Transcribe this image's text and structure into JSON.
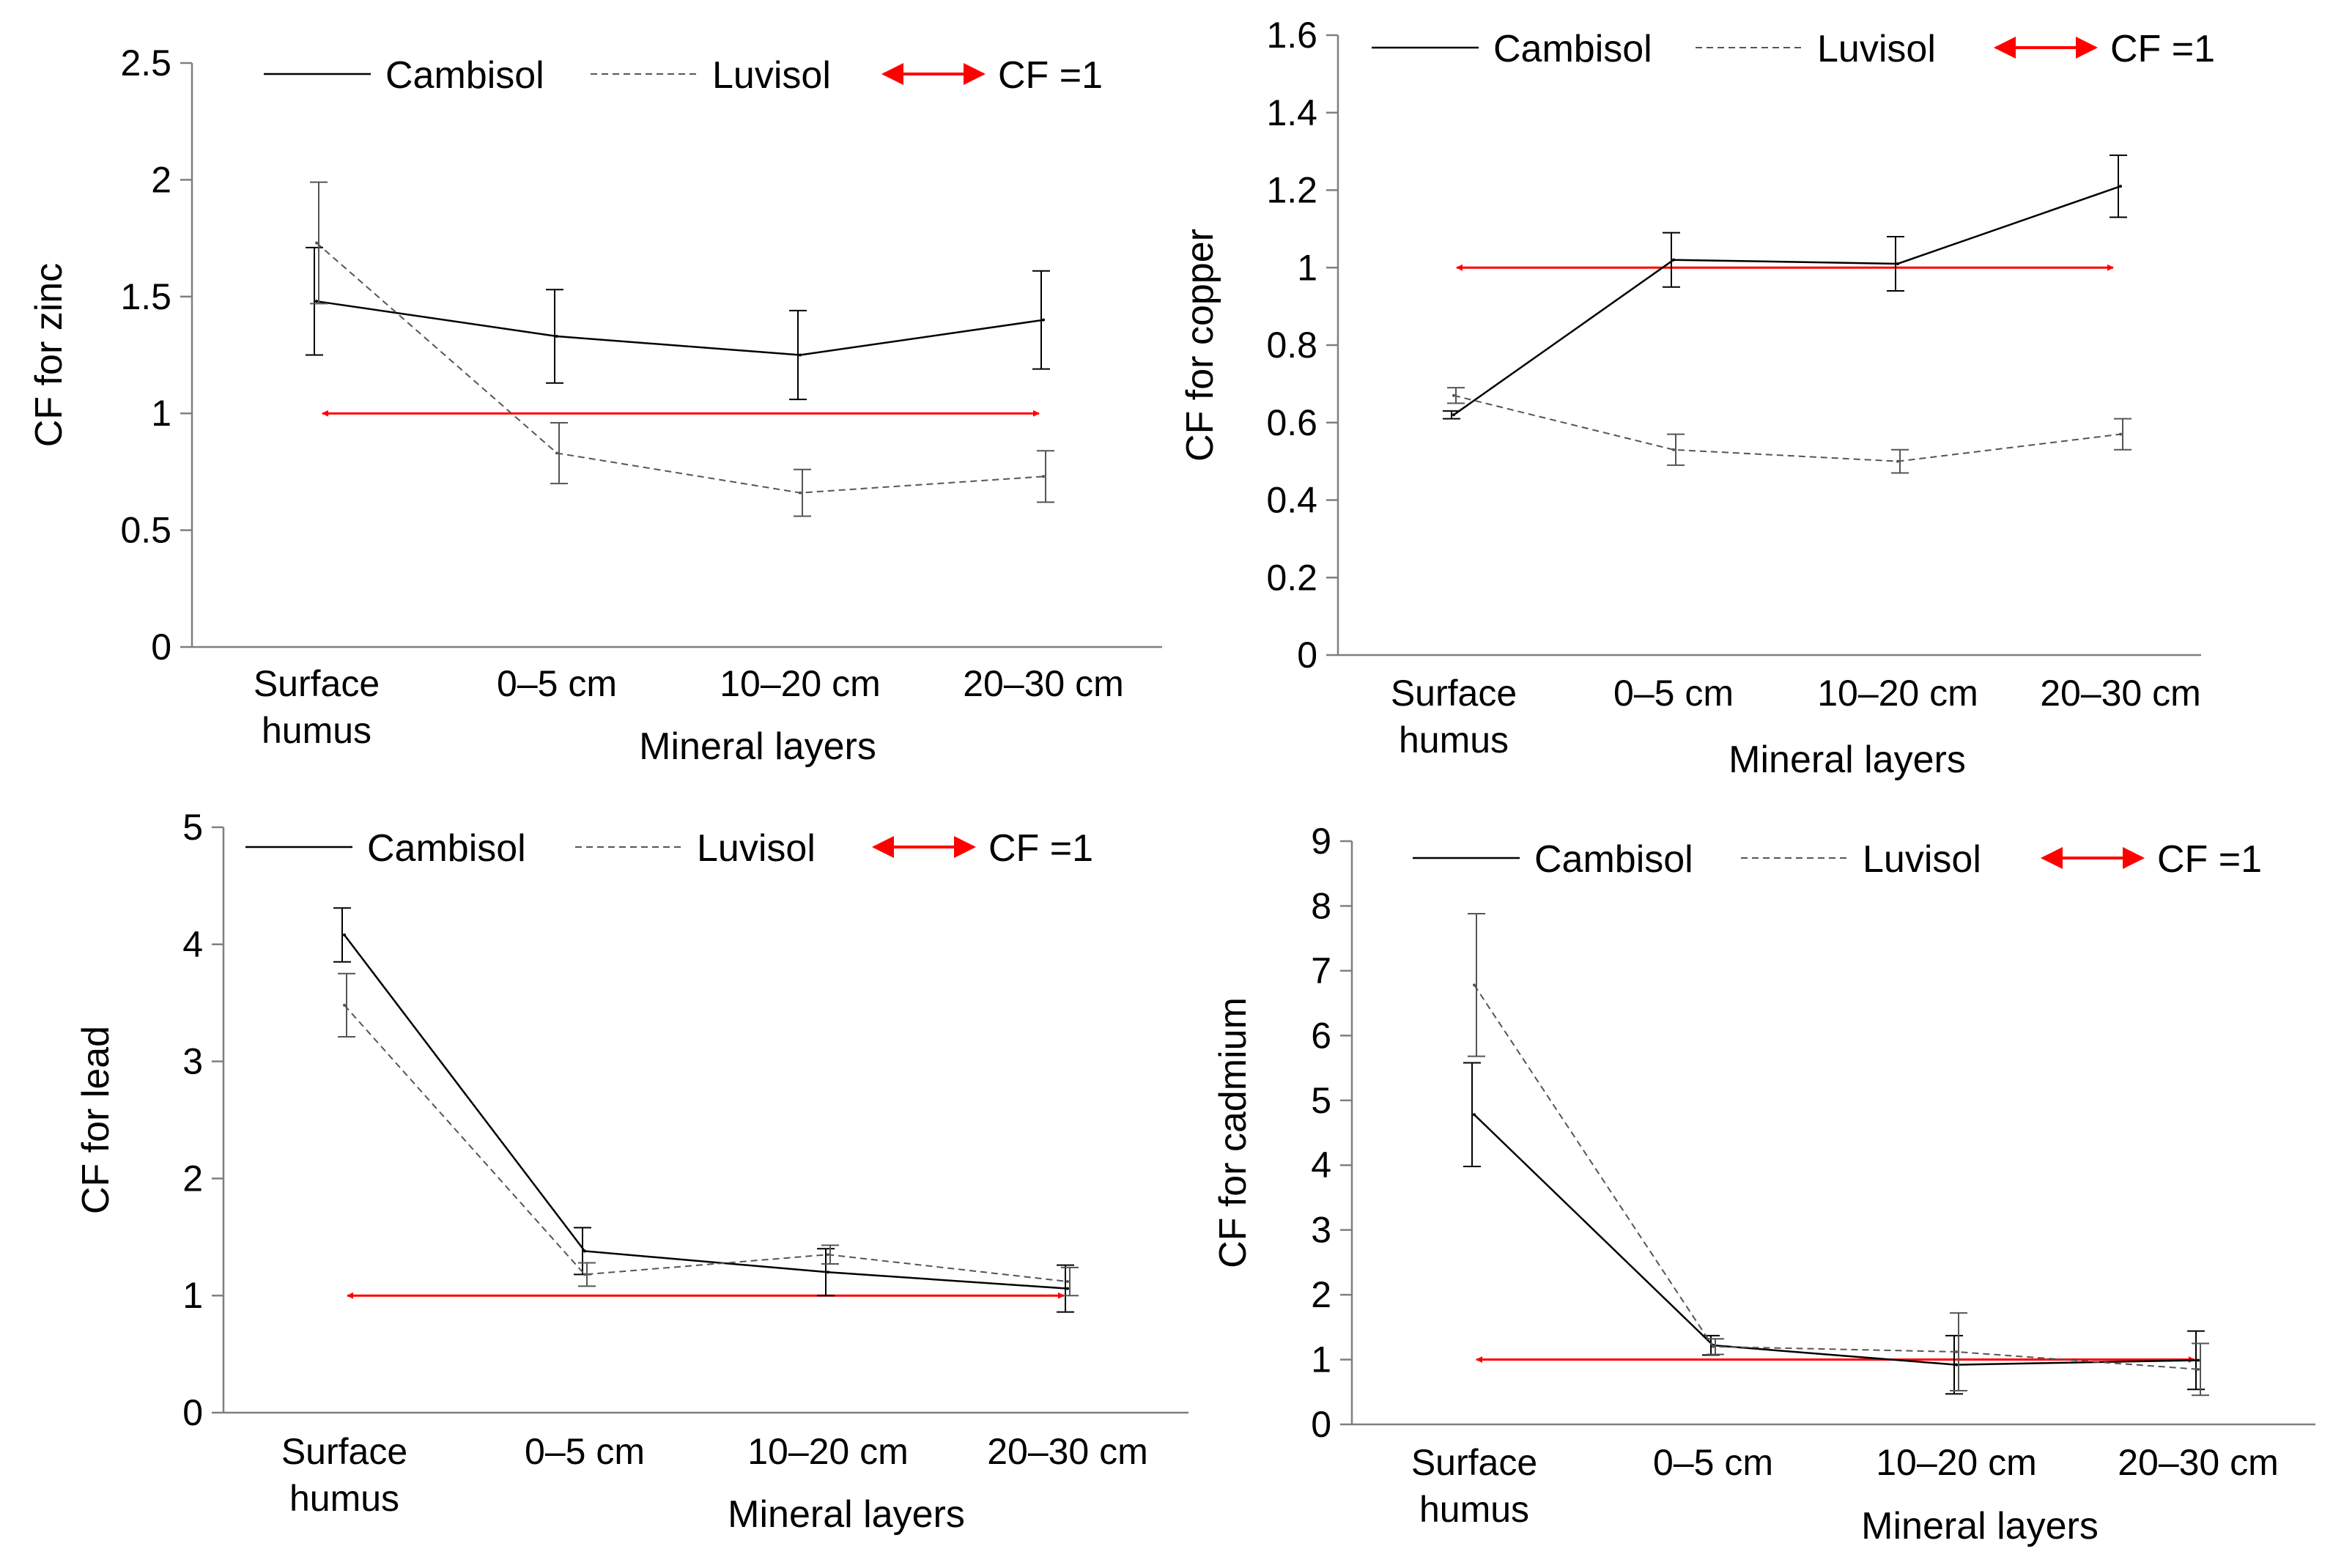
{
  "colors": {
    "axis": "#7f7f7f",
    "cambisol": "#000000",
    "luvisol": "#555555",
    "cf_arrow": "#ff0000"
  },
  "chart_data": [
    {
      "id": "zinc",
      "type": "line",
      "ylabel": "CF for zinc",
      "xlabel": "Mineral layers",
      "categories": [
        [
          "Surface",
          "humus"
        ],
        [
          "0–5 cm"
        ],
        [
          "10–20 cm"
        ],
        [
          "20–30 cm"
        ]
      ],
      "ylim": [
        0,
        2.5
      ],
      "yticks": [
        "0",
        "0.5",
        "1",
        "1.5",
        "2",
        "2.5"
      ],
      "series": [
        {
          "name": "Cambisol",
          "style": "solid",
          "values": [
            1.48,
            1.33,
            1.25,
            1.4
          ],
          "errors": [
            0.23,
            0.2,
            0.19,
            0.21
          ]
        },
        {
          "name": "Luvisol",
          "style": "dashed",
          "values": [
            1.73,
            0.83,
            0.66,
            0.73
          ],
          "errors": [
            0.26,
            0.13,
            0.1,
            0.11
          ]
        }
      ],
      "reference": {
        "label": "CF =1",
        "value": 1
      }
    },
    {
      "id": "copper",
      "type": "line",
      "ylabel": "CF for copper",
      "xlabel": "Mineral layers",
      "categories": [
        [
          "Surface",
          "humus"
        ],
        [
          "0–5 cm"
        ],
        [
          "10–20 cm"
        ],
        [
          "20–30 cm"
        ]
      ],
      "ylim": [
        0,
        1.6
      ],
      "yticks": [
        "0",
        "0.2",
        "0.4",
        "0.6",
        "0.8",
        "1",
        "1.2",
        "1.4",
        "1.6"
      ],
      "series": [
        {
          "name": "Cambisol",
          "style": "solid",
          "values": [
            0.62,
            1.02,
            1.01,
            1.21
          ],
          "errors": [
            0.01,
            0.07,
            0.07,
            0.08
          ]
        },
        {
          "name": "Luvisol",
          "style": "dashed",
          "values": [
            0.67,
            0.53,
            0.5,
            0.57
          ],
          "errors": [
            0.02,
            0.04,
            0.03,
            0.04
          ]
        }
      ],
      "reference": {
        "label": "CF =1",
        "value": 1
      }
    },
    {
      "id": "lead",
      "type": "line",
      "ylabel": "CF for lead",
      "xlabel": "Mineral layers",
      "categories": [
        [
          "Surface",
          "humus"
        ],
        [
          "0–5 cm"
        ],
        [
          "10–20 cm"
        ],
        [
          "20–30 cm"
        ]
      ],
      "ylim": [
        0,
        5
      ],
      "yticks": [
        "0",
        "1",
        "2",
        "3",
        "4",
        "5"
      ],
      "series": [
        {
          "name": "Cambisol",
          "style": "solid",
          "values": [
            4.08,
            1.38,
            1.2,
            1.06
          ],
          "errors": [
            0.23,
            0.2,
            0.2,
            0.2
          ]
        },
        {
          "name": "Luvisol",
          "style": "dashed",
          "values": [
            3.48,
            1.18,
            1.35,
            1.12
          ],
          "errors": [
            0.27,
            0.1,
            0.08,
            0.12
          ]
        }
      ],
      "reference": {
        "label": "CF =1",
        "value": 1
      }
    },
    {
      "id": "cadmium",
      "type": "line",
      "ylabel": "CF for cadmium",
      "xlabel": "Mineral layers",
      "categories": [
        [
          "Surface",
          "humus"
        ],
        [
          "0–5 cm"
        ],
        [
          "10–20 cm"
        ],
        [
          "20–30 cm"
        ]
      ],
      "ylim": [
        0,
        9
      ],
      "yticks": [
        "0",
        "1",
        "2",
        "3",
        "4",
        "5",
        "6",
        "7",
        "8",
        "9"
      ],
      "series": [
        {
          "name": "Cambisol",
          "style": "solid",
          "values": [
            4.78,
            1.22,
            0.92,
            0.99
          ],
          "errors": [
            0.8,
            0.15,
            0.45,
            0.45
          ]
        },
        {
          "name": "Luvisol",
          "style": "dashed",
          "values": [
            6.78,
            1.2,
            1.12,
            0.85
          ],
          "errors": [
            1.1,
            0.12,
            0.6,
            0.4
          ]
        }
      ],
      "reference": {
        "label": "CF =1",
        "value": 1
      }
    }
  ]
}
